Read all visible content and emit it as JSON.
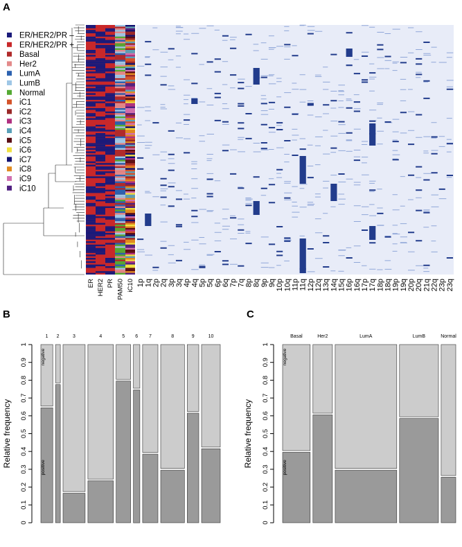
{
  "panel_labels": [
    "A",
    "B",
    "C"
  ],
  "legend": [
    {
      "label": "ER/HER2/PR –",
      "color": "#1a1a7a"
    },
    {
      "label": "ER/HER2/PR +",
      "color": "#c8282a"
    },
    {
      "label": "Basal",
      "color": "#b02a2a"
    },
    {
      "label": "Her2",
      "color": "#e38a8a"
    },
    {
      "label": "LumA",
      "color": "#2c62b0"
    },
    {
      "label": "LumB",
      "color": "#9fc7e6"
    },
    {
      "label": "Normal",
      "color": "#55aa33"
    },
    {
      "label": "iC1",
      "color": "#d4532a"
    },
    {
      "label": "iC2",
      "color": "#9a2828"
    },
    {
      "label": "iC3",
      "color": "#b03080"
    },
    {
      "label": "iC4",
      "color": "#5aa0b8"
    },
    {
      "label": "iC5",
      "color": "#5a0e14"
    },
    {
      "label": "iC6",
      "color": "#f0e040"
    },
    {
      "label": "iC7",
      "color": "#101070"
    },
    {
      "label": "iC8",
      "color": "#e08a20"
    },
    {
      "label": "iC9",
      "color": "#d070b0"
    },
    {
      "label": "iC10",
      "color": "#502080"
    }
  ],
  "chart_data": [
    {
      "type": "heatmap",
      "panel": "A",
      "annotation_columns": [
        "ER",
        "HER2",
        "PR",
        "PAM50",
        "iC10"
      ],
      "columns": [
        "1p",
        "1q",
        "2p",
        "2q",
        "3p",
        "3q",
        "4p",
        "4q",
        "5p",
        "5q",
        "6p",
        "6q",
        "7p",
        "7q",
        "8p",
        "8q",
        "9p",
        "9q",
        "10p",
        "10q",
        "11p",
        "11q",
        "12p",
        "12q",
        "13q",
        "14q",
        "15q",
        "16p",
        "16q",
        "17p",
        "17q",
        "18p",
        "18q",
        "19p",
        "19q",
        "20p",
        "20q",
        "21q",
        "22q",
        "23p",
        "23q"
      ],
      "colors": {
        "background": "#e8ecf8",
        "mark": "#223c8c",
        "line": "#8fa6d8"
      }
    },
    {
      "type": "bar",
      "panel": "B",
      "subtype": "mosaic",
      "categories": [
        "1",
        "2",
        "3",
        "4",
        "5",
        "6",
        "7",
        "8",
        "9",
        "10"
      ],
      "widths": [
        0.07,
        0.028,
        0.13,
        0.15,
        0.085,
        0.038,
        0.09,
        0.14,
        0.068,
        0.11
      ],
      "series": [
        {
          "name": "positive",
          "values": [
            0.65,
            0.78,
            0.17,
            0.24,
            0.8,
            0.75,
            0.39,
            0.3,
            0.62,
            0.42
          ]
        },
        {
          "name": "negative",
          "values": [
            0.35,
            0.22,
            0.83,
            0.76,
            0.2,
            0.25,
            0.61,
            0.7,
            0.38,
            0.58
          ]
        }
      ],
      "ylabel": "Relative frequency",
      "ylim": [
        0,
        1
      ],
      "yticks": [
        "0",
        "0.1",
        "0.2",
        "0.3",
        "0.4",
        "0.5",
        "0.6",
        "0.7",
        "0.8",
        "0.9",
        "1"
      ]
    },
    {
      "type": "bar",
      "panel": "C",
      "subtype": "mosaic",
      "categories": [
        "Basal",
        "Her2",
        "LumA",
        "LumB",
        "Normal"
      ],
      "widths": [
        0.17,
        0.12,
        0.38,
        0.24,
        0.09
      ],
      "series": [
        {
          "name": "positive",
          "values": [
            0.4,
            0.61,
            0.3,
            0.59,
            0.26
          ]
        },
        {
          "name": "negative",
          "values": [
            0.6,
            0.39,
            0.7,
            0.41,
            0.74
          ]
        }
      ],
      "ylabel": "Relative frequency",
      "ylim": [
        0,
        1
      ],
      "yticks": [
        "0",
        "0.1",
        "0.2",
        "0.3",
        "0.4",
        "0.5",
        "0.6",
        "0.7",
        "0.8",
        "0.9",
        "1"
      ]
    }
  ]
}
